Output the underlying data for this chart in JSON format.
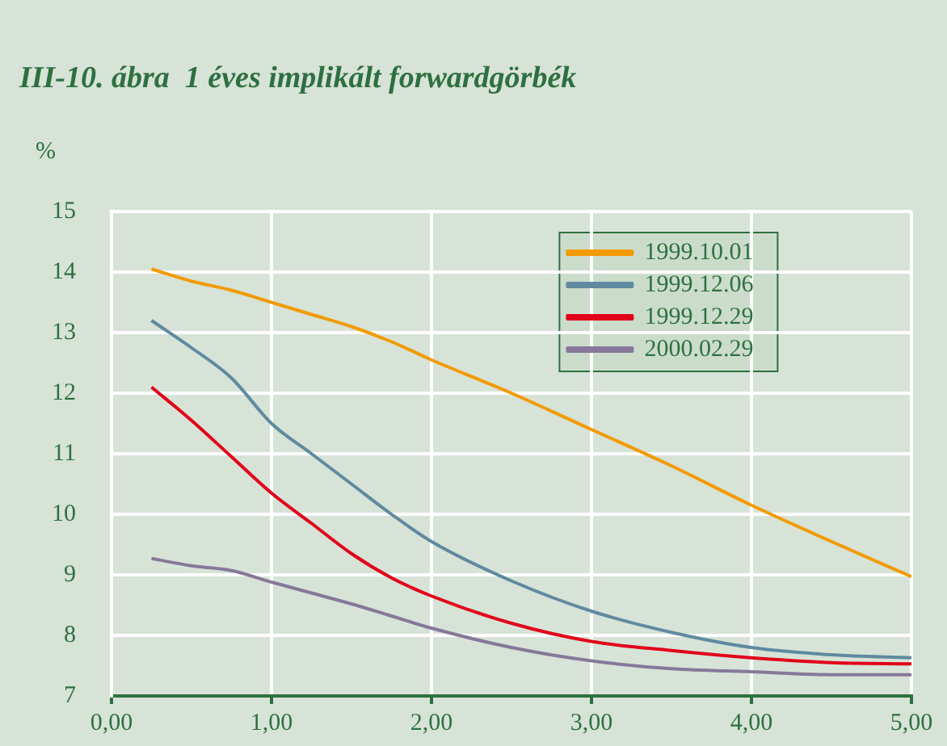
{
  "chart_data": {
    "type": "line",
    "title": "III-10. ábra  1 éves implikált forwardgörbék",
    "ylabel": "%",
    "x": [
      0.25,
      0.5,
      0.75,
      1,
      1.25,
      1.5,
      1.75,
      2,
      2.5,
      3,
      3.5,
      4,
      4.5,
      5
    ],
    "series": [
      {
        "name": "1999.10.01",
        "color": "#f29a00",
        "values": [
          14.05,
          13.85,
          13.7,
          13.5,
          13.3,
          13.1,
          12.85,
          12.55,
          12.0,
          11.4,
          10.8,
          10.15,
          9.55,
          8.97
        ]
      },
      {
        "name": "1999.12.06",
        "color": "#5f8aa0",
        "values": [
          13.2,
          12.75,
          12.25,
          11.5,
          11.0,
          10.5,
          10.0,
          9.55,
          8.9,
          8.4,
          8.05,
          7.8,
          7.68,
          7.63
        ]
      },
      {
        "name": "1999.12.29",
        "color": "#e2001a",
        "values": [
          12.1,
          11.55,
          10.95,
          10.35,
          9.85,
          9.35,
          8.95,
          8.65,
          8.2,
          7.9,
          7.75,
          7.63,
          7.55,
          7.53
        ]
      },
      {
        "name": "2000.02.29",
        "color": "#86789a",
        "values": [
          9.27,
          9.15,
          9.07,
          8.88,
          8.7,
          8.52,
          8.32,
          8.12,
          7.8,
          7.58,
          7.45,
          7.4,
          7.35,
          7.35
        ]
      }
    ],
    "xlim": [
      0,
      5
    ],
    "xticks": [
      {
        "value": 0,
        "label": "0,00"
      },
      {
        "value": 1,
        "label": "1,00"
      },
      {
        "value": 2,
        "label": "2,00"
      },
      {
        "value": 3,
        "label": "3,00"
      },
      {
        "value": 4,
        "label": "4,00"
      },
      {
        "value": 5,
        "label": "5,00"
      }
    ],
    "ylim": [
      7,
      15
    ],
    "yticks": [
      7,
      8,
      9,
      10,
      11,
      12,
      13,
      14,
      15
    ],
    "grid": true,
    "legend": "top right",
    "marker": "none",
    "line_style": "solid"
  }
}
